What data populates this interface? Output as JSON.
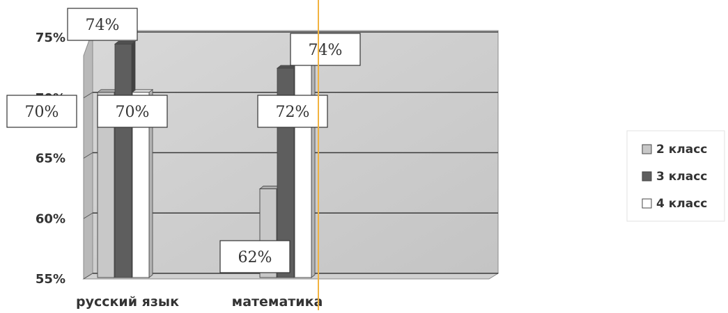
{
  "chart_data": {
    "type": "bar",
    "categories": [
      "русский язык",
      "математика"
    ],
    "series": [
      {
        "name": "2 класс",
        "values": [
          70,
          62
        ],
        "color": "#c8c8c8"
      },
      {
        "name": "3 класс",
        "values": [
          74,
          72
        ],
        "color": "#5e5e5e"
      },
      {
        "name": "4 класс",
        "values": [
          70,
          74
        ],
        "color": "#ffffff"
      }
    ],
    "y_ticks": [
      "55%",
      "60%",
      "65%",
      "70%",
      "75%"
    ],
    "ylim": [
      55,
      75
    ],
    "data_labels": [
      [
        "70%",
        "74%",
        "70%"
      ],
      [
        "62%",
        "72%",
        "74%"
      ]
    ],
    "legend_position": "right",
    "grid": true,
    "three_d": true
  }
}
